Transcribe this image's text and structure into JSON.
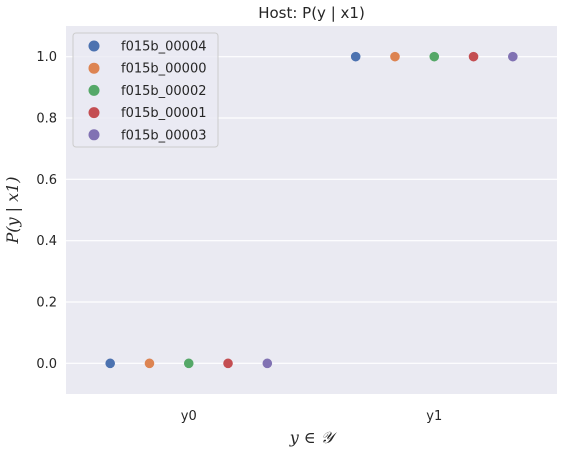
{
  "chart_data": {
    "type": "scatter",
    "title": "Host: P(y | x1)",
    "xlabel": "y ∈ 𝒴",
    "ylabel": "P(y | x1)",
    "categories": [
      "y0",
      "y1"
    ],
    "ylim": [
      -0.1,
      1.1
    ],
    "yticks": [
      "0.0",
      "0.2",
      "0.4",
      "0.6",
      "0.8",
      "1.0"
    ],
    "grid": true,
    "legend_position": "top-left",
    "series": [
      {
        "name": "f015b_00004",
        "color": "#4c72b0",
        "values": [
          0.0,
          1.0
        ]
      },
      {
        "name": "f015b_00000",
        "color": "#dd8452",
        "values": [
          0.0,
          1.0
        ]
      },
      {
        "name": "f015b_00002",
        "color": "#55a868",
        "values": [
          0.0,
          1.0
        ]
      },
      {
        "name": "f015b_00001",
        "color": "#c44e52",
        "values": [
          0.0,
          1.0
        ]
      },
      {
        "name": "f015b_00003",
        "color": "#8172b3",
        "values": [
          0.0,
          1.0
        ]
      }
    ]
  }
}
